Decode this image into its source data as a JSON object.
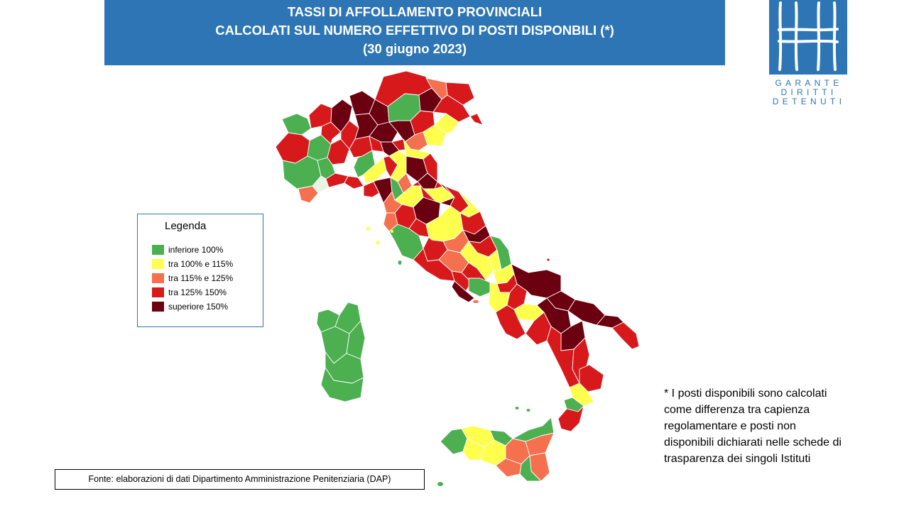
{
  "title": {
    "line1": "TASSI DI AFFOLLAMENTO PROVINCIALI",
    "line2": "CALCOLATI SUL NUMERO EFFETTIVO DI POSTI DISPONBILI (*)",
    "line3": "(30 giugno 2023)"
  },
  "logo": {
    "line1": "GARANTE",
    "line2": "DIRITTI",
    "line3": "DETENUTI",
    "color": "#2e75b6"
  },
  "legend": {
    "title": "Legenda",
    "items": [
      {
        "label": "inferiore 100%",
        "color": "#4caf50"
      },
      {
        "label": "tra 100% e 115%",
        "color": "#ffff4d"
      },
      {
        "label": "tra 115% e 125%",
        "color": "#f4704e"
      },
      {
        "label": "tra 125% 150%",
        "color": "#d7191c"
      },
      {
        "label": "superiore 150%",
        "color": "#6b0010"
      }
    ]
  },
  "note": {
    "line1": "* I posti disponibili sono calcolati",
    "line2": "come differenza tra capienza",
    "line3": "regolamentare e  posti non",
    "line4": "disponibili dichiarati nelle  schede di",
    "line5": "trasparenza dei singoli Istituti"
  },
  "source": "Fonte: elaborazioni di dati Dipartimento  Amministrazione Penitenziaria (DAP)",
  "colors": {
    "header_bg": "#2e75b6",
    "green": "#4caf50",
    "yellow": "#ffff4d",
    "orange": "#f4704e",
    "red": "#d7191c",
    "dark_red": "#6b0010"
  }
}
